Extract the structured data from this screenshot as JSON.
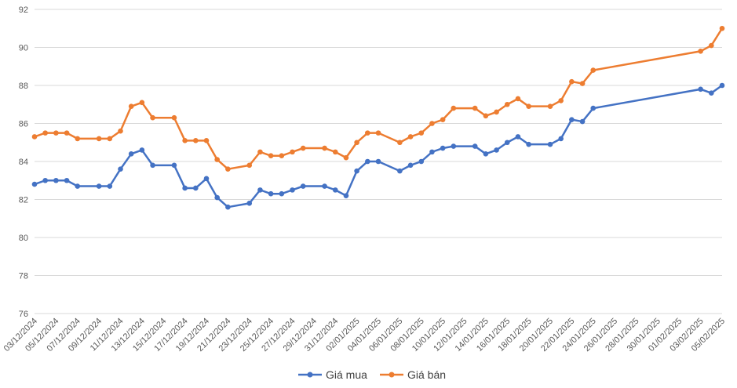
{
  "chart_data": {
    "type": "line",
    "title": "",
    "xlabel": "",
    "ylabel": "",
    "ylim": [
      76,
      92
    ],
    "y_ticks": [
      76,
      78,
      80,
      82,
      84,
      86,
      88,
      90,
      92
    ],
    "grid": true,
    "legend_position": "bottom-center",
    "x_tick_labels": [
      "03/12/2024",
      "05/12/2024",
      "07/12/2024",
      "09/12/2024",
      "11/12/2024",
      "13/12/2024",
      "15/12/2024",
      "17/12/2024",
      "19/12/2024",
      "21/12/2024",
      "23/12/2024",
      "25/12/2024",
      "27/12/2024",
      "29/12/2024",
      "31/12/2024",
      "02/01/2025",
      "04/01/2025",
      "06/01/2025",
      "08/01/2025",
      "10/01/2025",
      "12/01/2025",
      "14/01/2025",
      "16/01/2025",
      "18/01/2025",
      "20/01/2025",
      "22/01/2025",
      "24/01/2025",
      "26/01/2025",
      "28/01/2025",
      "30/01/2025",
      "01/02/2025",
      "03/02/2025",
      "05/02/2025"
    ],
    "series": [
      {
        "name": "Giá mua",
        "color": "#4472C4",
        "points": [
          [
            "03/12/2024",
            82.8
          ],
          [
            "04/12/2024",
            83.0
          ],
          [
            "05/12/2024",
            83.0
          ],
          [
            "06/12/2024",
            83.0
          ],
          [
            "07/12/2024",
            82.7
          ],
          [
            "09/12/2024",
            82.7
          ],
          [
            "10/12/2024",
            82.7
          ],
          [
            "11/12/2024",
            83.6
          ],
          [
            "12/12/2024",
            84.4
          ],
          [
            "13/12/2024",
            84.6
          ],
          [
            "14/12/2024",
            83.8
          ],
          [
            "16/12/2024",
            83.8
          ],
          [
            "17/12/2024",
            82.6
          ],
          [
            "18/12/2024",
            82.6
          ],
          [
            "19/12/2024",
            83.1
          ],
          [
            "20/12/2024",
            82.1
          ],
          [
            "21/12/2024",
            81.6
          ],
          [
            "23/12/2024",
            81.8
          ],
          [
            "24/12/2024",
            82.5
          ],
          [
            "25/12/2024",
            82.3
          ],
          [
            "26/12/2024",
            82.3
          ],
          [
            "27/12/2024",
            82.5
          ],
          [
            "28/12/2024",
            82.7
          ],
          [
            "30/12/2024",
            82.7
          ],
          [
            "31/12/2024",
            82.5
          ],
          [
            "01/01/2025",
            82.2
          ],
          [
            "02/01/2025",
            83.5
          ],
          [
            "03/01/2025",
            84.0
          ],
          [
            "04/01/2025",
            84.0
          ],
          [
            "06/01/2025",
            83.5
          ],
          [
            "07/01/2025",
            83.8
          ],
          [
            "08/01/2025",
            84.0
          ],
          [
            "09/01/2025",
            84.5
          ],
          [
            "10/01/2025",
            84.7
          ],
          [
            "11/01/2025",
            84.8
          ],
          [
            "13/01/2025",
            84.8
          ],
          [
            "14/01/2025",
            84.4
          ],
          [
            "15/01/2025",
            84.6
          ],
          [
            "16/01/2025",
            85.0
          ],
          [
            "17/01/2025",
            85.3
          ],
          [
            "18/01/2025",
            84.9
          ],
          [
            "20/01/2025",
            84.9
          ],
          [
            "21/01/2025",
            85.2
          ],
          [
            "22/01/2025",
            86.2
          ],
          [
            "23/01/2025",
            86.1
          ],
          [
            "24/01/2025",
            86.8
          ],
          [
            "03/02/2025",
            87.8
          ],
          [
            "04/02/2025",
            87.6
          ],
          [
            "05/02/2025",
            88.0
          ]
        ]
      },
      {
        "name": "Giá bán",
        "color": "#ED7D31",
        "points": [
          [
            "03/12/2024",
            85.3
          ],
          [
            "04/12/2024",
            85.5
          ],
          [
            "05/12/2024",
            85.5
          ],
          [
            "06/12/2024",
            85.5
          ],
          [
            "07/12/2024",
            85.2
          ],
          [
            "09/12/2024",
            85.2
          ],
          [
            "10/12/2024",
            85.2
          ],
          [
            "11/12/2024",
            85.6
          ],
          [
            "12/12/2024",
            86.9
          ],
          [
            "13/12/2024",
            87.1
          ],
          [
            "14/12/2024",
            86.3
          ],
          [
            "16/12/2024",
            86.3
          ],
          [
            "17/12/2024",
            85.1
          ],
          [
            "18/12/2024",
            85.1
          ],
          [
            "19/12/2024",
            85.1
          ],
          [
            "20/12/2024",
            84.1
          ],
          [
            "21/12/2024",
            83.6
          ],
          [
            "23/12/2024",
            83.8
          ],
          [
            "24/12/2024",
            84.5
          ],
          [
            "25/12/2024",
            84.3
          ],
          [
            "26/12/2024",
            84.3
          ],
          [
            "27/12/2024",
            84.5
          ],
          [
            "28/12/2024",
            84.7
          ],
          [
            "30/12/2024",
            84.7
          ],
          [
            "31/12/2024",
            84.5
          ],
          [
            "01/01/2025",
            84.2
          ],
          [
            "02/01/2025",
            85.0
          ],
          [
            "03/01/2025",
            85.5
          ],
          [
            "04/01/2025",
            85.5
          ],
          [
            "06/01/2025",
            85.0
          ],
          [
            "07/01/2025",
            85.3
          ],
          [
            "08/01/2025",
            85.5
          ],
          [
            "09/01/2025",
            86.0
          ],
          [
            "10/01/2025",
            86.2
          ],
          [
            "11/01/2025",
            86.8
          ],
          [
            "13/01/2025",
            86.8
          ],
          [
            "14/01/2025",
            86.4
          ],
          [
            "15/01/2025",
            86.6
          ],
          [
            "16/01/2025",
            87.0
          ],
          [
            "17/01/2025",
            87.3
          ],
          [
            "18/01/2025",
            86.9
          ],
          [
            "20/01/2025",
            86.9
          ],
          [
            "21/01/2025",
            87.2
          ],
          [
            "22/01/2025",
            88.2
          ],
          [
            "23/01/2025",
            88.1
          ],
          [
            "24/01/2025",
            88.8
          ],
          [
            "03/02/2025",
            89.8
          ],
          [
            "04/02/2025",
            90.1
          ],
          [
            "05/02/2025",
            91.0
          ]
        ]
      }
    ]
  }
}
